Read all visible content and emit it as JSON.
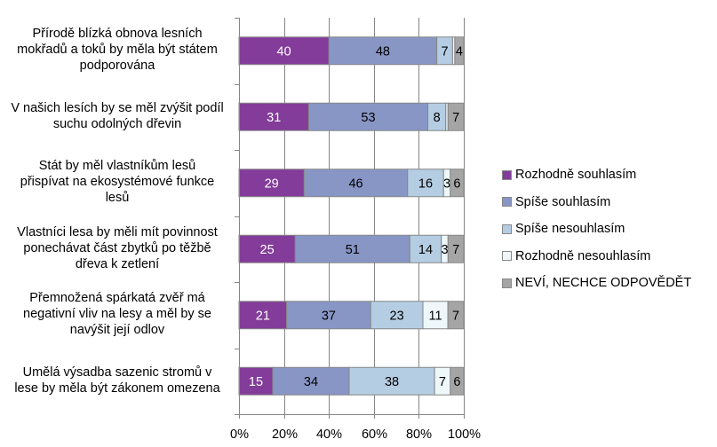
{
  "chart_data": {
    "type": "bar",
    "orientation": "horizontal",
    "stacked": "percent",
    "title": "",
    "xlabel": "",
    "ylabel": "",
    "xlim": [
      0,
      100
    ],
    "x_ticks": [
      "0%",
      "20%",
      "40%",
      "60%",
      "80%",
      "100%"
    ],
    "grid": true,
    "legend_position": "right",
    "categories": [
      "Přírodě blízká obnova lesních mokřadů a toků by měla být státem podporována",
      "V našich lesích by se měl zvýšit podíl suchu odolných dřevin",
      "Stát by měl vlastníkům lesů přispívat na ekosystémové funkce lesů",
      "Vlastníci lesa by měli mít povinnost ponechávat část zbytků po těžbě dřeva k zetlení",
      "Přemnožená spárkatá zvěř má negativní vliv na lesy a měl by se navýšit její odlov",
      "Umělá výsadba sazenic stromů v lese by měla být zákonem omezena"
    ],
    "series": [
      {
        "name": "Rozhodně souhlasím",
        "color": "#833c9a",
        "label_color": "#ffffff",
        "values": [
          40,
          31,
          29,
          25,
          21,
          15
        ]
      },
      {
        "name": "Spíše souhlasím",
        "color": "#8896c6",
        "label_color": "#000000",
        "values": [
          48,
          53,
          46,
          51,
          37,
          34
        ]
      },
      {
        "name": "Spíše nesouhlasím",
        "color": "#b4cde3",
        "label_color": "#000000",
        "values": [
          7,
          8,
          16,
          14,
          23,
          38
        ]
      },
      {
        "name": "Rozhodně nesouhlasím",
        "color": "#eef7fa",
        "label_color": "#000000",
        "values": [
          1,
          1,
          3,
          3,
          11,
          7
        ]
      },
      {
        "name": "NEVÍ, NECHCE ODPOVĚDĚT",
        "color": "#a5a5a5",
        "label_color": "#000000",
        "values": [
          4,
          7,
          6,
          7,
          7,
          6
        ]
      }
    ],
    "shown_labels": [
      [
        true,
        true,
        true,
        false,
        true
      ],
      [
        true,
        true,
        true,
        false,
        true
      ],
      [
        true,
        true,
        true,
        true,
        true
      ],
      [
        true,
        true,
        true,
        true,
        true
      ],
      [
        true,
        true,
        true,
        true,
        true
      ],
      [
        true,
        true,
        true,
        true,
        true
      ]
    ]
  }
}
